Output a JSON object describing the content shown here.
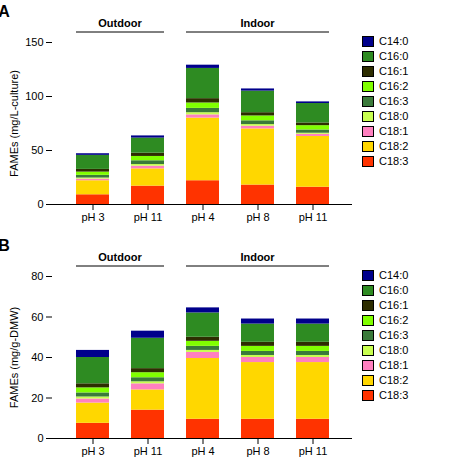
{
  "chart_data": [
    {
      "type": "bar",
      "stacked": true,
      "title": "A",
      "categories": [
        "pH 3",
        "pH 11",
        "pH 4",
        "pH 8",
        "pH 11"
      ],
      "groups": [
        {
          "label": "Outdoor",
          "first": 0,
          "last": 1
        },
        {
          "label": "Indoor",
          "first": 2,
          "last": 4
        }
      ],
      "ylabel": "FAMEs (mg/L-culture)",
      "ylim": [
        0,
        150
      ],
      "yticks": [
        0,
        50,
        100,
        150
      ],
      "legend": "right",
      "series": [
        {
          "name": "C18:3",
          "color": "#FF3300",
          "values": [
            9,
            17,
            22,
            18,
            16
          ]
        },
        {
          "name": "C18:2",
          "color": "#FFD700",
          "values": [
            13,
            16,
            58,
            52,
            47
          ]
        },
        {
          "name": "C18:1",
          "color": "#FF80C0",
          "values": [
            1.5,
            2.5,
            3.0,
            2.5,
            2.0
          ]
        },
        {
          "name": "C18:0",
          "color": "#C8FF50",
          "values": [
            1.0,
            1.5,
            2.0,
            1.5,
            1.0
          ]
        },
        {
          "name": "C16:3",
          "color": "#3a7a3a",
          "values": [
            2.5,
            3.5,
            4.0,
            3.5,
            3.0
          ]
        },
        {
          "name": "C16:2",
          "color": "#80FF00",
          "values": [
            3.0,
            4.0,
            5.0,
            4.5,
            4.0
          ]
        },
        {
          "name": "C16:1",
          "color": "#2d2d00",
          "values": [
            2.5,
            3.0,
            4.0,
            3.0,
            2.5
          ]
        },
        {
          "name": "C16:0",
          "color": "#2E8B22",
          "values": [
            13,
            14,
            28,
            20,
            18
          ]
        },
        {
          "name": "C14:0",
          "color": "#00008B",
          "values": [
            1.5,
            2.0,
            3.0,
            2.0,
            1.5
          ]
        }
      ]
    },
    {
      "type": "bar",
      "stacked": true,
      "title": "B",
      "categories": [
        "pH 3",
        "pH 11",
        "pH 4",
        "pH 8",
        "pH 11"
      ],
      "groups": [
        {
          "label": "Outdoor",
          "first": 0,
          "last": 1
        },
        {
          "label": "Indoor",
          "first": 2,
          "last": 4
        }
      ],
      "ylabel": "FAMEs (mg/g-DMW)",
      "ylim": [
        0,
        80
      ],
      "yticks": [
        0,
        20,
        40,
        60,
        80
      ],
      "legend": "right",
      "series": [
        {
          "name": "C18:3",
          "color": "#FF3300",
          "values": [
            7.5,
            14,
            9.5,
            9.5,
            9.5
          ]
        },
        {
          "name": "C18:2",
          "color": "#FFD700",
          "values": [
            10,
            10,
            30,
            28,
            28
          ]
        },
        {
          "name": "C18:1",
          "color": "#FF80C0",
          "values": [
            2.0,
            3.0,
            3.0,
            2.5,
            2.5
          ]
        },
        {
          "name": "C18:0",
          "color": "#C8FF50",
          "values": [
            1.0,
            1.0,
            1.0,
            1.0,
            1.0
          ]
        },
        {
          "name": "C16:3",
          "color": "#3a7a3a",
          "values": [
            2.0,
            2.0,
            2.0,
            2.0,
            2.0
          ]
        },
        {
          "name": "C16:2",
          "color": "#80FF00",
          "values": [
            2.5,
            2.5,
            2.5,
            2.5,
            2.5
          ]
        },
        {
          "name": "C16:1",
          "color": "#2d2d00",
          "values": [
            2.0,
            2.0,
            2.0,
            2.0,
            2.0
          ]
        },
        {
          "name": "C16:0",
          "color": "#2E8B22",
          "values": [
            13,
            15,
            12,
            9,
            9
          ]
        },
        {
          "name": "C14:0",
          "color": "#00008B",
          "values": [
            3.5,
            3.5,
            2.5,
            2.5,
            2.5
          ]
        }
      ]
    }
  ]
}
